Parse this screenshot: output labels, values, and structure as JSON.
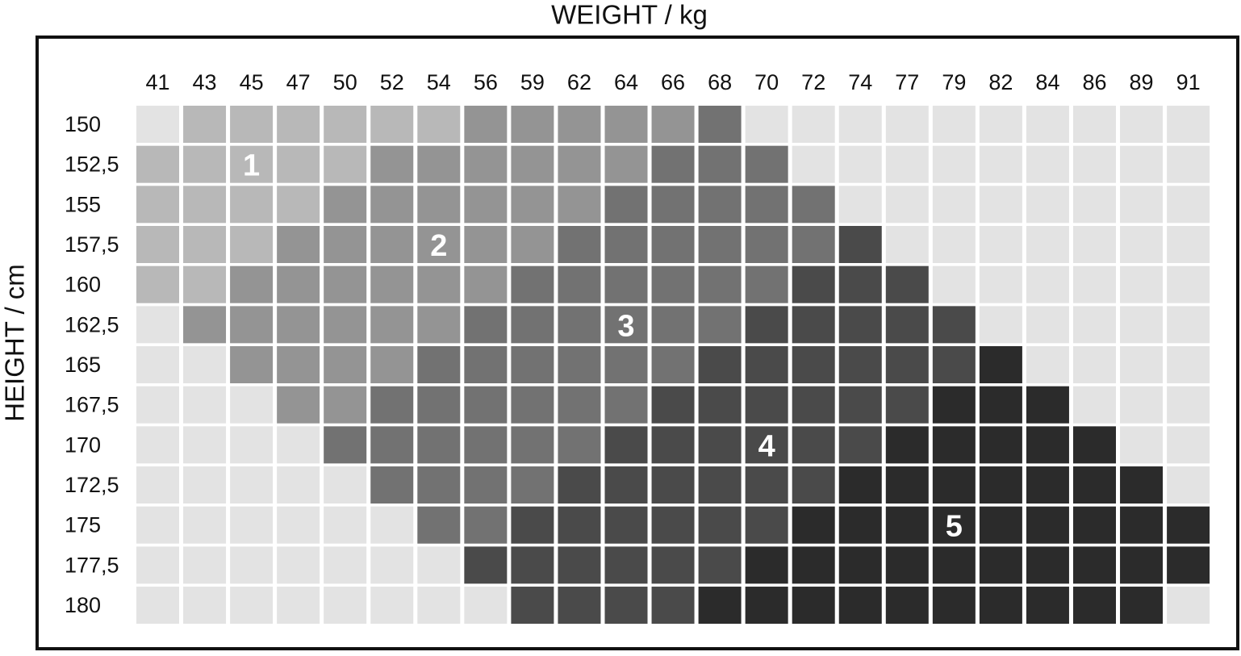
{
  "x_axis_title": "WEIGHT / kg",
  "y_axis_title": "HEIGHT / cm",
  "weights": [
    "41",
    "43",
    "45",
    "47",
    "50",
    "52",
    "54",
    "56",
    "59",
    "62",
    "64",
    "66",
    "68",
    "70",
    "72",
    "74",
    "77",
    "79",
    "82",
    "84",
    "86",
    "89",
    "91"
  ],
  "heights": [
    "150",
    "152,5",
    "155",
    "157,5",
    "160",
    "162,5",
    "165",
    "167,5",
    "170",
    "172,5",
    "175",
    "177,5",
    "180"
  ],
  "empty_color": "#e3e3e3",
  "zones": [
    {
      "label": "1",
      "color": "#b8b8b8"
    },
    {
      "label": "2",
      "color": "#949494"
    },
    {
      "label": "3",
      "color": "#727272"
    },
    {
      "label": "4",
      "color": "#4a4a4a"
    },
    {
      "label": "5",
      "color": "#2b2b2b"
    }
  ],
  "levels": [
    [
      0,
      1,
      1,
      1,
      1,
      1,
      1,
      2,
      2,
      2,
      2,
      2,
      3,
      0,
      0,
      0,
      0,
      0,
      0,
      0,
      0,
      0,
      0
    ],
    [
      1,
      1,
      1,
      1,
      1,
      2,
      2,
      2,
      2,
      2,
      2,
      3,
      3,
      3,
      0,
      0,
      0,
      0,
      0,
      0,
      0,
      0,
      0
    ],
    [
      1,
      1,
      1,
      1,
      2,
      2,
      2,
      2,
      2,
      2,
      3,
      3,
      3,
      3,
      3,
      0,
      0,
      0,
      0,
      0,
      0,
      0,
      0
    ],
    [
      1,
      1,
      1,
      2,
      2,
      2,
      2,
      2,
      2,
      3,
      3,
      3,
      3,
      3,
      3,
      4,
      0,
      0,
      0,
      0,
      0,
      0,
      0
    ],
    [
      1,
      1,
      2,
      2,
      2,
      2,
      2,
      2,
      3,
      3,
      3,
      3,
      3,
      3,
      4,
      4,
      4,
      0,
      0,
      0,
      0,
      0,
      0
    ],
    [
      0,
      2,
      2,
      2,
      2,
      2,
      2,
      3,
      3,
      3,
      3,
      3,
      3,
      4,
      4,
      4,
      4,
      4,
      0,
      0,
      0,
      0,
      0
    ],
    [
      0,
      0,
      2,
      2,
      2,
      2,
      3,
      3,
      3,
      3,
      3,
      3,
      4,
      4,
      4,
      4,
      4,
      4,
      5,
      0,
      0,
      0,
      0
    ],
    [
      0,
      0,
      0,
      2,
      2,
      3,
      3,
      3,
      3,
      3,
      3,
      4,
      4,
      4,
      4,
      4,
      4,
      5,
      5,
      5,
      0,
      0,
      0
    ],
    [
      0,
      0,
      0,
      0,
      3,
      3,
      3,
      3,
      3,
      3,
      4,
      4,
      4,
      4,
      4,
      4,
      5,
      5,
      5,
      5,
      5,
      0,
      0
    ],
    [
      0,
      0,
      0,
      0,
      0,
      3,
      3,
      3,
      3,
      4,
      4,
      4,
      4,
      4,
      4,
      5,
      5,
      5,
      5,
      5,
      5,
      5,
      0
    ],
    [
      0,
      0,
      0,
      0,
      0,
      0,
      3,
      3,
      4,
      4,
      4,
      4,
      4,
      4,
      5,
      5,
      5,
      5,
      5,
      5,
      5,
      5,
      5
    ],
    [
      0,
      0,
      0,
      0,
      0,
      0,
      0,
      4,
      4,
      4,
      4,
      4,
      4,
      5,
      5,
      5,
      5,
      5,
      5,
      5,
      5,
      5,
      5
    ],
    [
      0,
      0,
      0,
      0,
      0,
      0,
      0,
      0,
      4,
      4,
      4,
      4,
      5,
      5,
      5,
      5,
      5,
      5,
      5,
      5,
      5,
      5,
      0
    ]
  ]
}
